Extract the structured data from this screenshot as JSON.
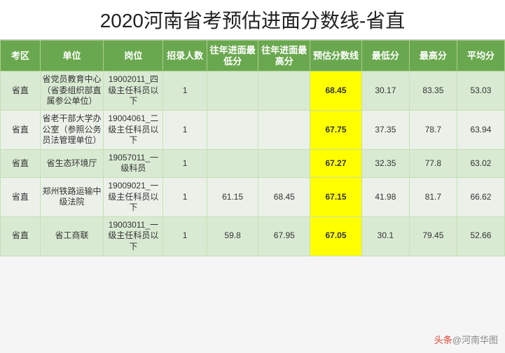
{
  "title": "2020河南省考预估进面分数线-省直",
  "columns": [
    "考区",
    "单位",
    "岗位",
    "招录人数",
    "往年进面最低分",
    "往年进面最高分",
    "预估分数线",
    "最低分",
    "最高分",
    "平均分"
  ],
  "highlight_col": 6,
  "rows": [
    {
      "area": "省直",
      "unit": "省党员教育中心（省委组织部直属参公单位）",
      "position": "19002011_四级主任科员以下",
      "count": "1",
      "prev_low": "",
      "prev_high": "",
      "estimate": "68.45",
      "low": "30.17",
      "high": "83.35",
      "avg": "53.03"
    },
    {
      "area": "省直",
      "unit": "省老干部大学办公室（参照公务员法管理单位）",
      "position": "19004061_二级主任科员以下",
      "count": "1",
      "prev_low": "",
      "prev_high": "",
      "estimate": "67.75",
      "low": "37.35",
      "high": "78.7",
      "avg": "63.94"
    },
    {
      "area": "省直",
      "unit": "省生态环境厅",
      "position": "19057011_一级科员",
      "count": "1",
      "prev_low": "",
      "prev_high": "",
      "estimate": "67.27",
      "low": "32.35",
      "high": "77.8",
      "avg": "63.02"
    },
    {
      "area": "省直",
      "unit": "郑州铁路运输中级法院",
      "position": "19009021_一级主任科员以下",
      "count": "1",
      "prev_low": "61.15",
      "prev_high": "68.45",
      "estimate": "67.15",
      "low": "41.98",
      "high": "81.7",
      "avg": "66.62"
    },
    {
      "area": "省直",
      "unit": "省工商联",
      "position": "19003011_一级主任科员以下",
      "count": "1",
      "prev_low": "59.8",
      "prev_high": "67.95",
      "estimate": "67.05",
      "low": "30.1",
      "high": "79.45",
      "avg": "52.66"
    }
  ],
  "watermark": {
    "prefix": "头条",
    "suffix": "@河南华图"
  },
  "colors": {
    "header_bg": "#6aa84f",
    "row_a_bg": "#d9ead3",
    "row_b_bg": "#ebf1e9",
    "highlight_bg": "#ffff00"
  }
}
